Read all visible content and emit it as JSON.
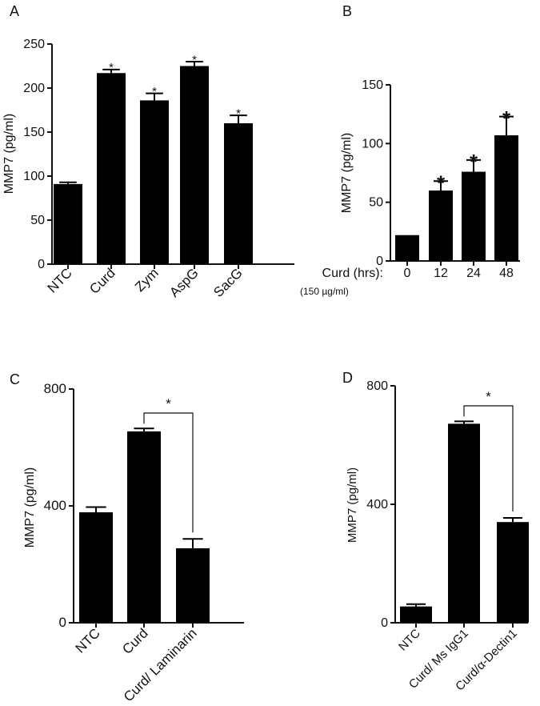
{
  "chart_data": [
    {
      "type": "bar",
      "panel_label": "A",
      "title": "",
      "ylabel": "MMP7 (pg/ml)",
      "xlabel": "",
      "categories": [
        "NTC",
        "Curd",
        "Zym",
        "AspG",
        "SacG"
      ],
      "values": [
        91,
        217,
        186,
        225,
        160
      ],
      "errors": [
        2,
        4,
        8,
        5,
        9
      ],
      "significance": [
        "",
        "*",
        "*",
        "*",
        "*"
      ],
      "ylim": [
        0,
        250
      ],
      "yticks": [
        0,
        50,
        100,
        150,
        200,
        250
      ],
      "tick_labels": [
        "0",
        "50",
        "100",
        "150",
        "200",
        "250"
      ],
      "rotate_xlabels": true
    },
    {
      "type": "bar",
      "panel_label": "B",
      "title": "",
      "ylabel": "MMP7 (pg/ml)",
      "xlabel_prefix": "Curd (hrs):",
      "xlabel_note": "(150 µg/ml)",
      "categories": [
        "0",
        "12",
        "24",
        "48"
      ],
      "values": [
        22,
        60,
        76,
        107
      ],
      "errors": [
        0,
        8,
        10,
        16
      ],
      "significance": [
        "",
        "*",
        "*",
        "*"
      ],
      "ylim": [
        0,
        150
      ],
      "yticks": [
        0,
        50,
        100,
        150
      ],
      "tick_labels": [
        "0",
        "50",
        "100",
        "150"
      ],
      "rotate_xlabels": false
    },
    {
      "type": "bar",
      "panel_label": "C",
      "title": "",
      "ylabel": "MMP7 (pg/ml)",
      "xlabel": "",
      "categories": [
        "NTC",
        "Curd",
        "Curd/ Laminarin"
      ],
      "values": [
        378,
        655,
        255
      ],
      "errors": [
        18,
        10,
        32
      ],
      "comparison": {
        "from": 1,
        "to": 2,
        "label": "*"
      },
      "ylim": [
        0,
        800
      ],
      "yticks": [
        0,
        400,
        800
      ],
      "tick_labels": [
        "0",
        "400",
        "800"
      ],
      "rotate_xlabels": true
    },
    {
      "type": "bar",
      "panel_label": "D",
      "title": "",
      "ylabel": "MMP7 (pg/ml)",
      "xlabel": "",
      "categories": [
        "NTC",
        "Curd/ Ms IgG1",
        "Curd/α-Dectin1"
      ],
      "values": [
        55,
        672,
        340
      ],
      "errors": [
        8,
        8,
        14
      ],
      "comparison": {
        "from": 1,
        "to": 2,
        "label": "*"
      },
      "ylim": [
        0,
        800
      ],
      "yticks": [
        0,
        400,
        800
      ],
      "tick_labels": [
        "0",
        "400",
        "800"
      ],
      "rotate_xlabels": true
    }
  ]
}
